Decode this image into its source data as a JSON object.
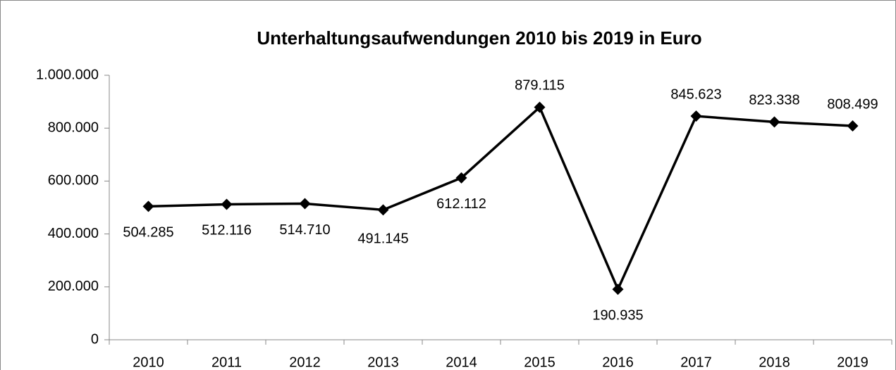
{
  "chart_data": {
    "type": "line",
    "title": "Unterhaltungsaufwendungen 2010 bis 2019 in Euro",
    "categories": [
      "2010",
      "2011",
      "2012",
      "2013",
      "2014",
      "2015",
      "2016",
      "2017",
      "2018",
      "2019"
    ],
    "values": [
      504285,
      512116,
      514710,
      491145,
      612112,
      879115,
      190935,
      845623,
      823338,
      808499
    ],
    "value_labels": [
      "504.285",
      "512.116",
      "514.710",
      "491.145",
      "612.112",
      "879.115",
      "190.935",
      "845.623",
      "823.338",
      "808.499"
    ],
    "color": "#000000",
    "ylim": [
      0,
      1000000
    ],
    "yticks": [
      0,
      {
        "value": 200000,
        "label": "200.000"
      },
      {
        "value": 400000,
        "label": "400.000"
      },
      {
        "value": 600000,
        "label": "600.000"
      },
      {
        "value": 800000,
        "label": "800.000"
      },
      {
        "value": 1000000,
        "label": "1.000.000"
      }
    ],
    "grid": false
  }
}
